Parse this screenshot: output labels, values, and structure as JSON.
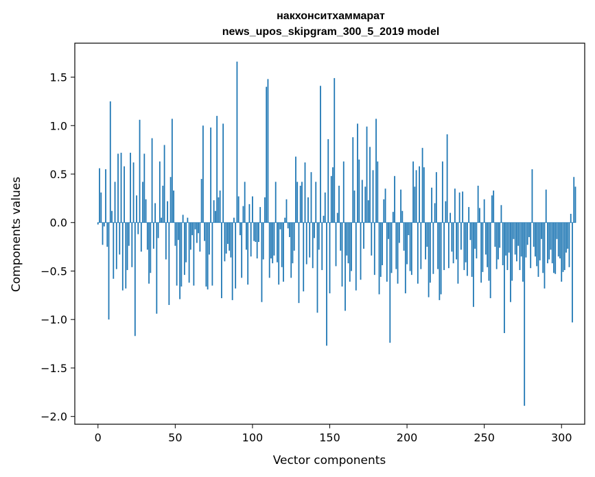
{
  "chart_data": {
    "type": "bar",
    "title_line1": "накхонситхаммарат",
    "title_line2": "news_upos_skipgram_300_5_2019 model",
    "xlabel": "Vector components",
    "ylabel": "Components values",
    "xlim": [
      -15,
      315
    ],
    "ylim": [
      -2.08,
      1.85
    ],
    "x_ticks": [
      0,
      50,
      100,
      150,
      200,
      250,
      300
    ],
    "x_tick_labels": [
      "0",
      "50",
      "100",
      "150",
      "200",
      "250",
      "300"
    ],
    "y_ticks": [
      -2.0,
      -1.5,
      -1.0,
      -0.5,
      0.0,
      0.5,
      1.0,
      1.5
    ],
    "y_tick_labels": [
      "−2.0",
      "−1.5",
      "−1.0",
      "−0.5",
      "0.0",
      "0.5",
      "1.0",
      "1.5"
    ],
    "bar_color": "#1f77b4",
    "grid": false,
    "values": [
      -0.02,
      0.56,
      0.31,
      -0.23,
      -0.04,
      0.55,
      -0.25,
      -1.0,
      1.25,
      0.12,
      -0.58,
      0.42,
      -0.48,
      0.71,
      -0.33,
      0.72,
      -0.7,
      0.58,
      -0.68,
      -0.49,
      -0.24,
      0.72,
      -0.46,
      0.62,
      -1.17,
      0.28,
      -0.12,
      1.06,
      -0.3,
      0.42,
      0.71,
      0.24,
      -0.28,
      -0.63,
      -0.52,
      0.87,
      -0.27,
      0.2,
      -0.94,
      -0.16,
      0.63,
      0.05,
      0.38,
      0.8,
      -0.38,
      0.22,
      -0.85,
      0.47,
      1.07,
      0.33,
      -0.24,
      -0.65,
      -0.18,
      -0.79,
      -0.66,
      0.08,
      -0.54,
      -0.41,
      0.05,
      -0.62,
      -0.28,
      -0.13,
      -0.65,
      -0.07,
      -0.21,
      -0.11,
      -0.3,
      0.45,
      1.0,
      -0.19,
      -0.66,
      -0.69,
      -0.33,
      0.98,
      -0.65,
      0.23,
      0.12,
      1.1,
      0.26,
      0.33,
      -0.78,
      1.02,
      -0.4,
      -0.32,
      -0.22,
      -0.29,
      -0.36,
      -0.8,
      0.05,
      -0.68,
      1.66,
      0.27,
      -0.13,
      -0.57,
      0.17,
      0.42,
      -0.28,
      -0.64,
      0.19,
      -0.35,
      0.27,
      -0.19,
      -0.2,
      -0.37,
      -0.2,
      0.16,
      -0.82,
      -0.38,
      0.26,
      1.4,
      1.48,
      -0.57,
      -0.37,
      -0.42,
      -0.34,
      0.42,
      -0.41,
      -0.64,
      -0.07,
      -0.46,
      -0.61,
      0.05,
      0.24,
      -0.06,
      -0.15,
      -0.57,
      -0.42,
      -0.29,
      0.68,
      0.42,
      -0.83,
      0.38,
      0.42,
      -0.71,
      0.62,
      -0.43,
      0.26,
      -0.36,
      0.52,
      -0.47,
      -0.16,
      0.42,
      -0.93,
      -0.28,
      1.41,
      -0.49,
      0.07,
      0.31,
      -1.27,
      0.86,
      -0.73,
      0.48,
      0.57,
      1.49,
      -0.45,
      0.1,
      0.38,
      -0.29,
      -0.66,
      0.63,
      -0.91,
      -0.34,
      -0.42,
      -0.61,
      -0.5,
      0.88,
      0.33,
      -0.7,
      1.02,
      0.65,
      -0.59,
      0.44,
      -0.27,
      0.37,
      0.99,
      0.23,
      0.78,
      -0.34,
      0.54,
      -0.54,
      1.07,
      0.63,
      -0.74,
      -0.56,
      -0.44,
      0.24,
      0.35,
      -0.61,
      -0.17,
      -1.24,
      -0.52,
      0.11,
      0.48,
      -0.48,
      -0.63,
      -0.21,
      0.34,
      0.12,
      -0.29,
      -0.73,
      -0.43,
      -0.13,
      -0.5,
      -0.54,
      0.63,
      0.37,
      0.54,
      -0.63,
      0.58,
      -0.48,
      0.77,
      0.57,
      -0.38,
      -0.25,
      -0.77,
      -0.62,
      0.36,
      -0.53,
      0.2,
      0.52,
      -0.48,
      -0.8,
      -0.74,
      0.63,
      -0.49,
      0.22,
      0.91,
      -0.47,
      0.1,
      -0.3,
      -0.42,
      0.35,
      -0.38,
      -0.63,
      0.31,
      -0.28,
      0.32,
      -0.49,
      -0.41,
      -0.55,
      0.16,
      -0.18,
      -0.56,
      -0.87,
      -0.27,
      -0.37,
      0.38,
      0.15,
      -0.62,
      -0.51,
      0.24,
      -0.33,
      -0.46,
      -0.6,
      -0.78,
      0.28,
      0.33,
      -0.25,
      -0.48,
      -0.38,
      -0.26,
      0.18,
      -0.44,
      -1.14,
      -0.34,
      -0.49,
      -0.31,
      -0.82,
      -0.6,
      -0.17,
      -0.33,
      -0.4,
      -0.24,
      -0.49,
      -0.35,
      -0.61,
      -1.89,
      -0.36,
      -0.23,
      -0.15,
      -0.47,
      0.55,
      -0.25,
      -0.35,
      -0.45,
      -0.56,
      -0.39,
      -0.17,
      -0.52,
      -0.68,
      0.34,
      -0.42,
      -0.38,
      -0.28,
      -0.42,
      -0.52,
      -0.53,
      -0.17,
      -0.35,
      -0.37,
      -0.61,
      -0.51,
      -0.49,
      -0.31,
      -0.27,
      -0.46,
      0.09,
      -1.03,
      0.47,
      0.37
    ]
  }
}
